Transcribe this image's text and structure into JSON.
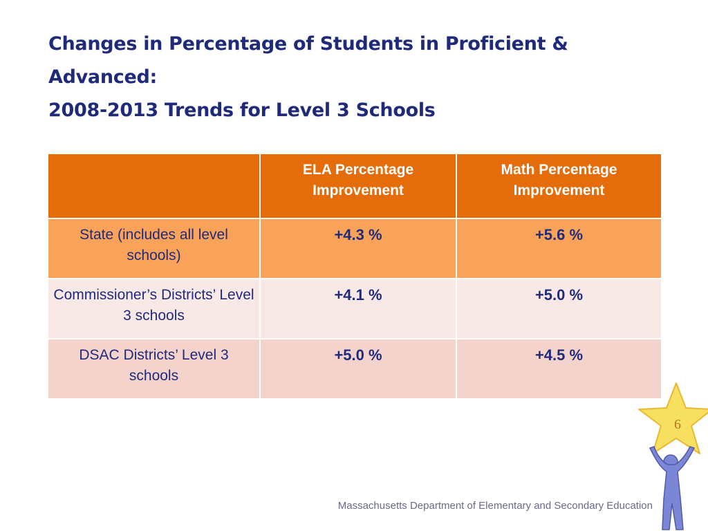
{
  "title": {
    "line1": "Changes in Percentage of Students in Proficient &",
    "line2": "Advanced:",
    "line3": "2008-2013 Trends for Level 3 Schools"
  },
  "table": {
    "headers": [
      "",
      "ELA Percentage Improvement",
      "Math Percentage Improvement"
    ],
    "rows": [
      {
        "label": "State (includes all level schools)",
        "ela": "+4.3 %",
        "math": "+5.6 %"
      },
      {
        "label": "Commissioner’s Districts’ Level 3 schools",
        "ela": "+4.1 %",
        "math": "+5.0 %"
      },
      {
        "label": "DSAC Districts’ Level 3 schools",
        "ela": "+5.0 %",
        "math": "+4.5 %"
      }
    ]
  },
  "footer": {
    "text": "Massachusetts Department of Elementary and Secondary Education"
  },
  "slide_number": "6",
  "colors": {
    "title": "#1f2a7a",
    "header_bg": "#e46c0a",
    "row1_bg": "#f9a35a",
    "row2_bg": "#f8e9e6",
    "row3_bg": "#f3d3cc",
    "star": "#f7e060",
    "figure": "#7b86d6"
  },
  "icons": {
    "logo": "star-figure-icon"
  }
}
